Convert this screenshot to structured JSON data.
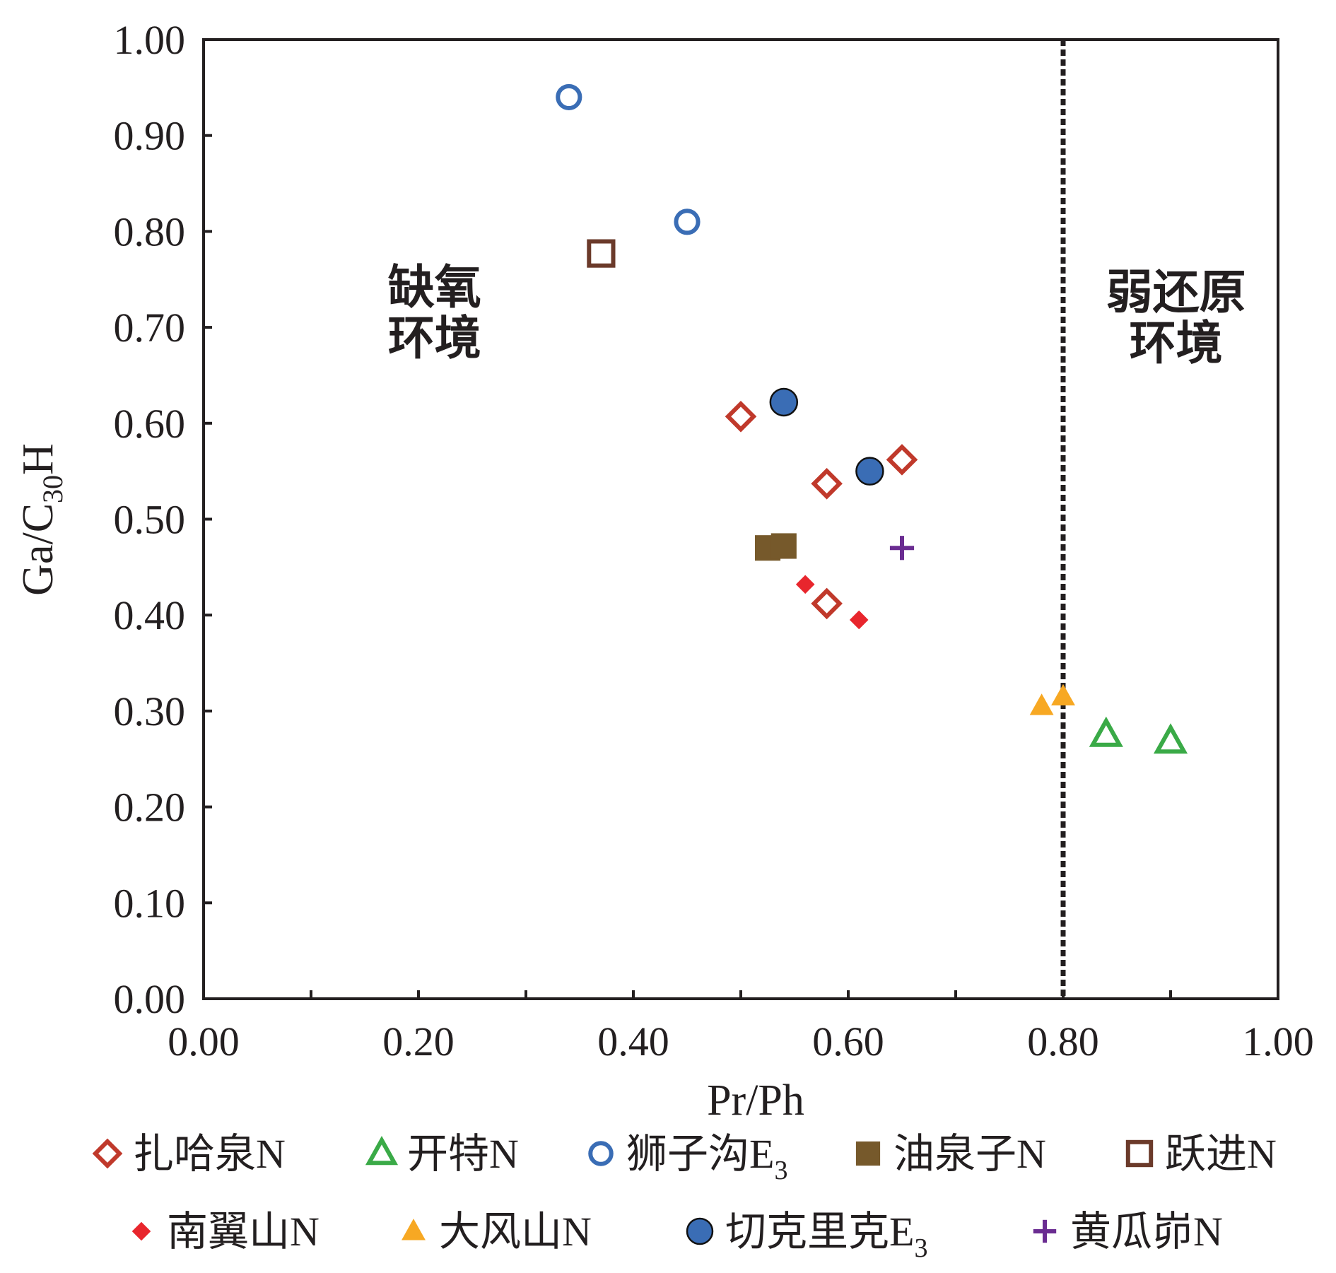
{
  "chart_data": {
    "type": "scatter",
    "title": "",
    "xlabel": "Pr/Ph",
    "ylabel": {
      "prefix": "Ga/C",
      "sub": "30",
      "suffix": "H"
    },
    "xlim": [
      0,
      1
    ],
    "ylim": [
      0,
      1
    ],
    "x_ticks": [
      "0.00",
      "0.20",
      "0.40",
      "0.60",
      "0.80",
      "1.00"
    ],
    "y_ticks": [
      "0.00",
      "0.10",
      "0.20",
      "0.30",
      "0.40",
      "0.50",
      "0.60",
      "0.70",
      "0.80",
      "0.90",
      "1.00"
    ],
    "grid": false,
    "threshold_line": {
      "x": 0.8,
      "style": "dashed",
      "color": "#231f20"
    },
    "regions": [
      {
        "lines": [
          "缺氧",
          "环境"
        ],
        "x": 0.215,
        "y": 0.725
      },
      {
        "lines": [
          "弱还原",
          "环境"
        ],
        "x": 0.905,
        "y": 0.72
      }
    ],
    "legend_position": "bottom",
    "series": [
      {
        "name": "扎哈泉",
        "suffix": "N",
        "sub": "",
        "marker": "diamond-open",
        "color": "#c0392b",
        "points": [
          [
            0.5,
            0.607
          ],
          [
            0.58,
            0.537
          ],
          [
            0.65,
            0.562
          ],
          [
            0.58,
            0.412
          ]
        ]
      },
      {
        "name": "开特",
        "suffix": "N",
        "sub": "",
        "marker": "triangle-open",
        "color": "#3aaa47",
        "points": [
          [
            0.84,
            0.275
          ],
          [
            0.9,
            0.268
          ]
        ]
      },
      {
        "name": "狮子沟",
        "suffix": "E",
        "sub": "3",
        "marker": "circle-open",
        "color": "#3a6db5",
        "points": [
          [
            0.34,
            0.94
          ],
          [
            0.45,
            0.81
          ]
        ]
      },
      {
        "name": "油泉子",
        "suffix": "N",
        "sub": "",
        "marker": "square-filled",
        "color": "#76592b",
        "points": [
          [
            0.525,
            0.47
          ],
          [
            0.54,
            0.472
          ]
        ]
      },
      {
        "name": "跃进",
        "suffix": "N",
        "sub": "",
        "marker": "square-open",
        "color": "#6b3a2a",
        "points": [
          [
            0.37,
            0.777
          ]
        ]
      },
      {
        "name": "南翼山",
        "suffix": "N",
        "sub": "",
        "marker": "diamond-filled",
        "color": "#e8262d",
        "points": [
          [
            0.56,
            0.432
          ],
          [
            0.61,
            0.395
          ]
        ]
      },
      {
        "name": "大风山",
        "suffix": "N",
        "sub": "",
        "marker": "triangle-filled",
        "color": "#f7a823",
        "points": [
          [
            0.78,
            0.305
          ],
          [
            0.8,
            0.315
          ]
        ]
      },
      {
        "name": "切克里克",
        "suffix": "E",
        "sub": "3",
        "marker": "circle-filled",
        "color": "#3a6db5",
        "points": [
          [
            0.54,
            0.622
          ],
          [
            0.62,
            0.55
          ]
        ]
      },
      {
        "name": "黄瓜峁",
        "suffix": "N",
        "sub": "",
        "marker": "plus",
        "color": "#6a2c91",
        "points": [
          [
            0.65,
            0.47
          ]
        ]
      }
    ]
  }
}
